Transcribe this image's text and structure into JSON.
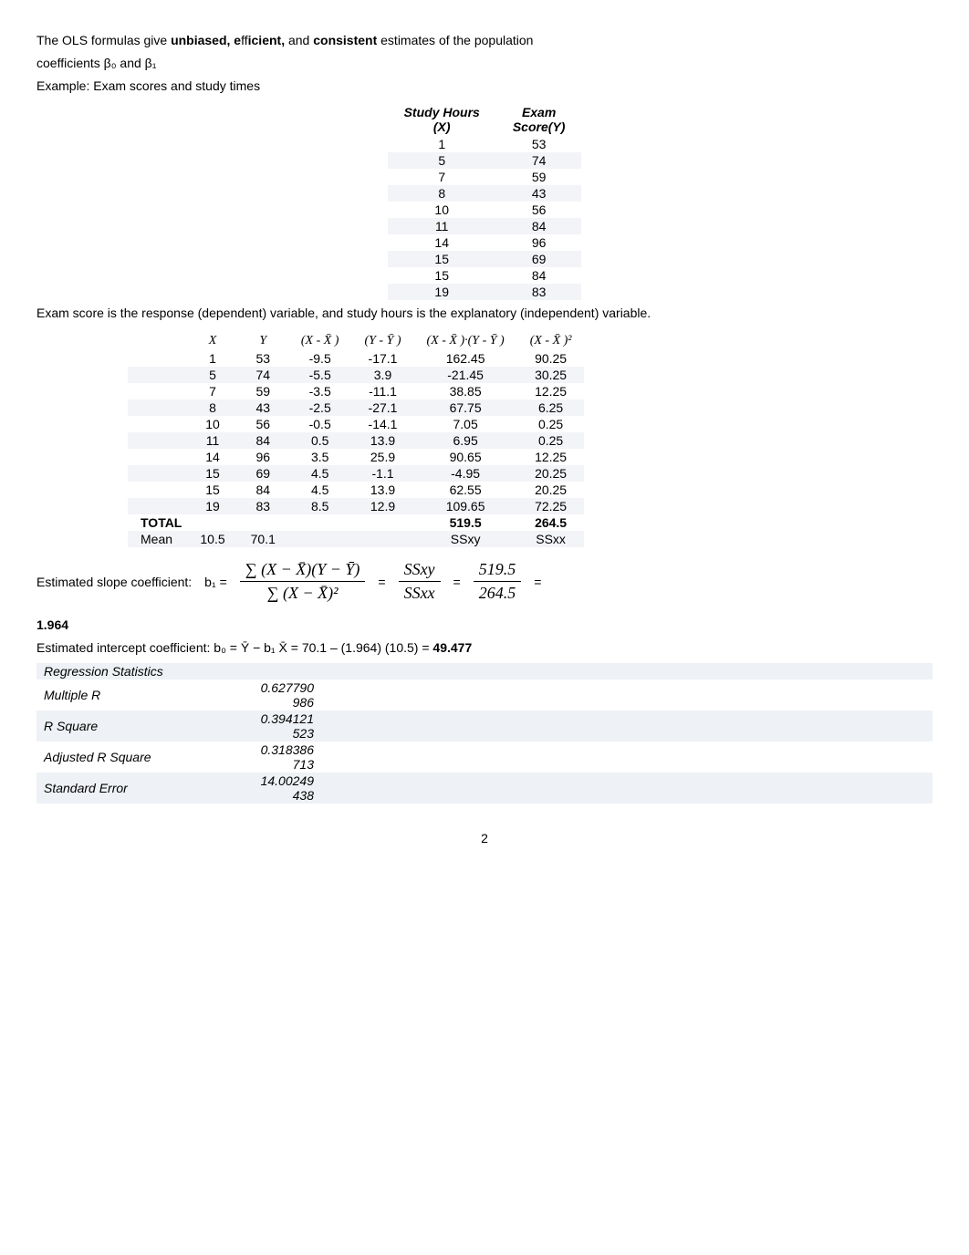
{
  "intro1_a": "The OLS formulas give ",
  "intro1_b": "unbiased, e",
  "intro1_c": "ff",
  "intro1_d": "icient,",
  "intro1_e": " and ",
  "intro1_f": "consistent",
  "intro1_g": " estimates of the population",
  "intro2": "coefficients β₀ and β₁",
  "intro3": "Example: Exam scores and study times",
  "t1": {
    "h1": "Study Hours (X)",
    "h2": "Exam Score(Y)",
    "rows": [
      [
        "1",
        "53"
      ],
      [
        "5",
        "74"
      ],
      [
        "7",
        "59"
      ],
      [
        "8",
        "43"
      ],
      [
        "10",
        "56"
      ],
      [
        "11",
        "84"
      ],
      [
        "14",
        "96"
      ],
      [
        "15",
        "69"
      ],
      [
        "15",
        "84"
      ],
      [
        "19",
        "83"
      ]
    ]
  },
  "mid": "Exam score is the response (dependent) variable, and study hours is the explanatory (independent) variable.",
  "t2": {
    "h": [
      "",
      "X",
      "Y",
      "(X - X̄ )",
      "(Y - Ȳ )",
      "(X - X̄ )·(Y - Ȳ )",
      "(X - X̄ )²"
    ],
    "rows": [
      [
        "",
        "1",
        "53",
        "-9.5",
        "-17.1",
        "162.45",
        "90.25"
      ],
      [
        "",
        "5",
        "74",
        "-5.5",
        "3.9",
        "-21.45",
        "30.25"
      ],
      [
        "",
        "7",
        "59",
        "-3.5",
        "-11.1",
        "38.85",
        "12.25"
      ],
      [
        "",
        "8",
        "43",
        "-2.5",
        "-27.1",
        "67.75",
        "6.25"
      ],
      [
        "",
        "10",
        "56",
        "-0.5",
        "-14.1",
        "7.05",
        "0.25"
      ],
      [
        "",
        "11",
        "84",
        "0.5",
        "13.9",
        "6.95",
        "0.25"
      ],
      [
        "",
        "14",
        "96",
        "3.5",
        "25.9",
        "90.65",
        "12.25"
      ],
      [
        "",
        "15",
        "69",
        "4.5",
        "-1.1",
        "-4.95",
        "20.25"
      ],
      [
        "",
        "15",
        "84",
        "4.5",
        "13.9",
        "62.55",
        "20.25"
      ],
      [
        "",
        "19",
        "83",
        "8.5",
        "12.9",
        "109.65",
        "72.25"
      ]
    ],
    "total": [
      "TOTAL",
      "",
      "",
      "",
      "",
      "519.5",
      "264.5"
    ],
    "mean": [
      "Mean",
      "10.5",
      "70.1",
      "",
      "",
      "SSxy",
      "SSxx"
    ]
  },
  "eq1": {
    "label": "Estimated slope coefficient:",
    "b": "b₁ =",
    "num": "∑ (X − X̄)(Y − Ȳ)",
    "den": "∑ (X − X̄)²",
    "eq": "=",
    "f2n": "SSxy",
    "f2d": "SSxx",
    "f3n": "519.5",
    "f3d": "264.5",
    "end": "="
  },
  "res": "1.964",
  "eq2": "Estimated intercept coefficient: b₀ =   Ȳ − b₁ X̄   = 70.1 – (1.964) (10.5) = ",
  "eq2b": "49.477",
  "t3": {
    "title": "Regression Statistics",
    "rows": [
      [
        "Multiple R",
        "0.627790986"
      ],
      [
        "R Square",
        "0.394121523"
      ],
      [
        "Adjusted R Square",
        "0.318386713"
      ],
      [
        "Standard Error",
        "14.00249438"
      ]
    ]
  },
  "page": "2"
}
